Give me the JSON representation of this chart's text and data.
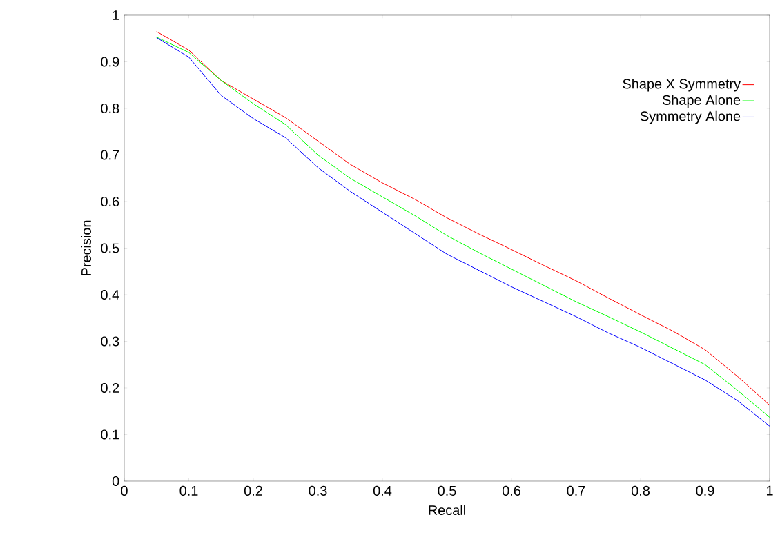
{
  "chart_data": {
    "type": "line",
    "xlabel": "Recall",
    "ylabel": "Precision",
    "x": [
      0.05,
      0.1,
      0.15,
      0.2,
      0.25,
      0.3,
      0.35,
      0.4,
      0.45,
      0.5,
      0.55,
      0.6,
      0.65,
      0.7,
      0.75,
      0.8,
      0.85,
      0.9,
      0.95,
      1
    ],
    "series": [
      {
        "name": "Shape X Symmetry",
        "color": "#ff0000",
        "values": [
          0.965,
          0.925,
          0.86,
          0.82,
          0.78,
          0.73,
          0.68,
          0.64,
          0.605,
          0.565,
          0.53,
          0.497,
          0.463,
          0.43,
          0.393,
          0.357,
          0.322,
          0.282,
          0.225,
          0.163
        ]
      },
      {
        "name": "Shape Alone",
        "color": "#00ff00",
        "values": [
          0.953,
          0.92,
          0.86,
          0.81,
          0.765,
          0.7,
          0.65,
          0.61,
          0.57,
          0.527,
          0.49,
          0.455,
          0.42,
          0.385,
          0.353,
          0.32,
          0.285,
          0.25,
          0.195,
          0.137
        ]
      },
      {
        "name": "Symmetry Alone",
        "color": "#0000ff",
        "values": [
          0.952,
          0.91,
          0.828,
          0.778,
          0.737,
          0.673,
          0.622,
          0.577,
          0.532,
          0.487,
          0.452,
          0.417,
          0.385,
          0.353,
          0.318,
          0.287,
          0.252,
          0.217,
          0.173,
          0.118
        ]
      }
    ],
    "xlim": [
      0,
      1
    ],
    "ylim": [
      0,
      1
    ],
    "xticks": [
      0,
      0.1,
      0.2,
      0.3,
      0.4,
      0.5,
      0.6,
      0.7,
      0.8,
      0.9,
      1
    ],
    "yticks": [
      0,
      0.1,
      0.2,
      0.3,
      0.4,
      0.5,
      0.6,
      0.7,
      0.8,
      0.9,
      1
    ],
    "legend": "top right",
    "grid": false,
    "marker": "none",
    "line_style": "solid"
  }
}
